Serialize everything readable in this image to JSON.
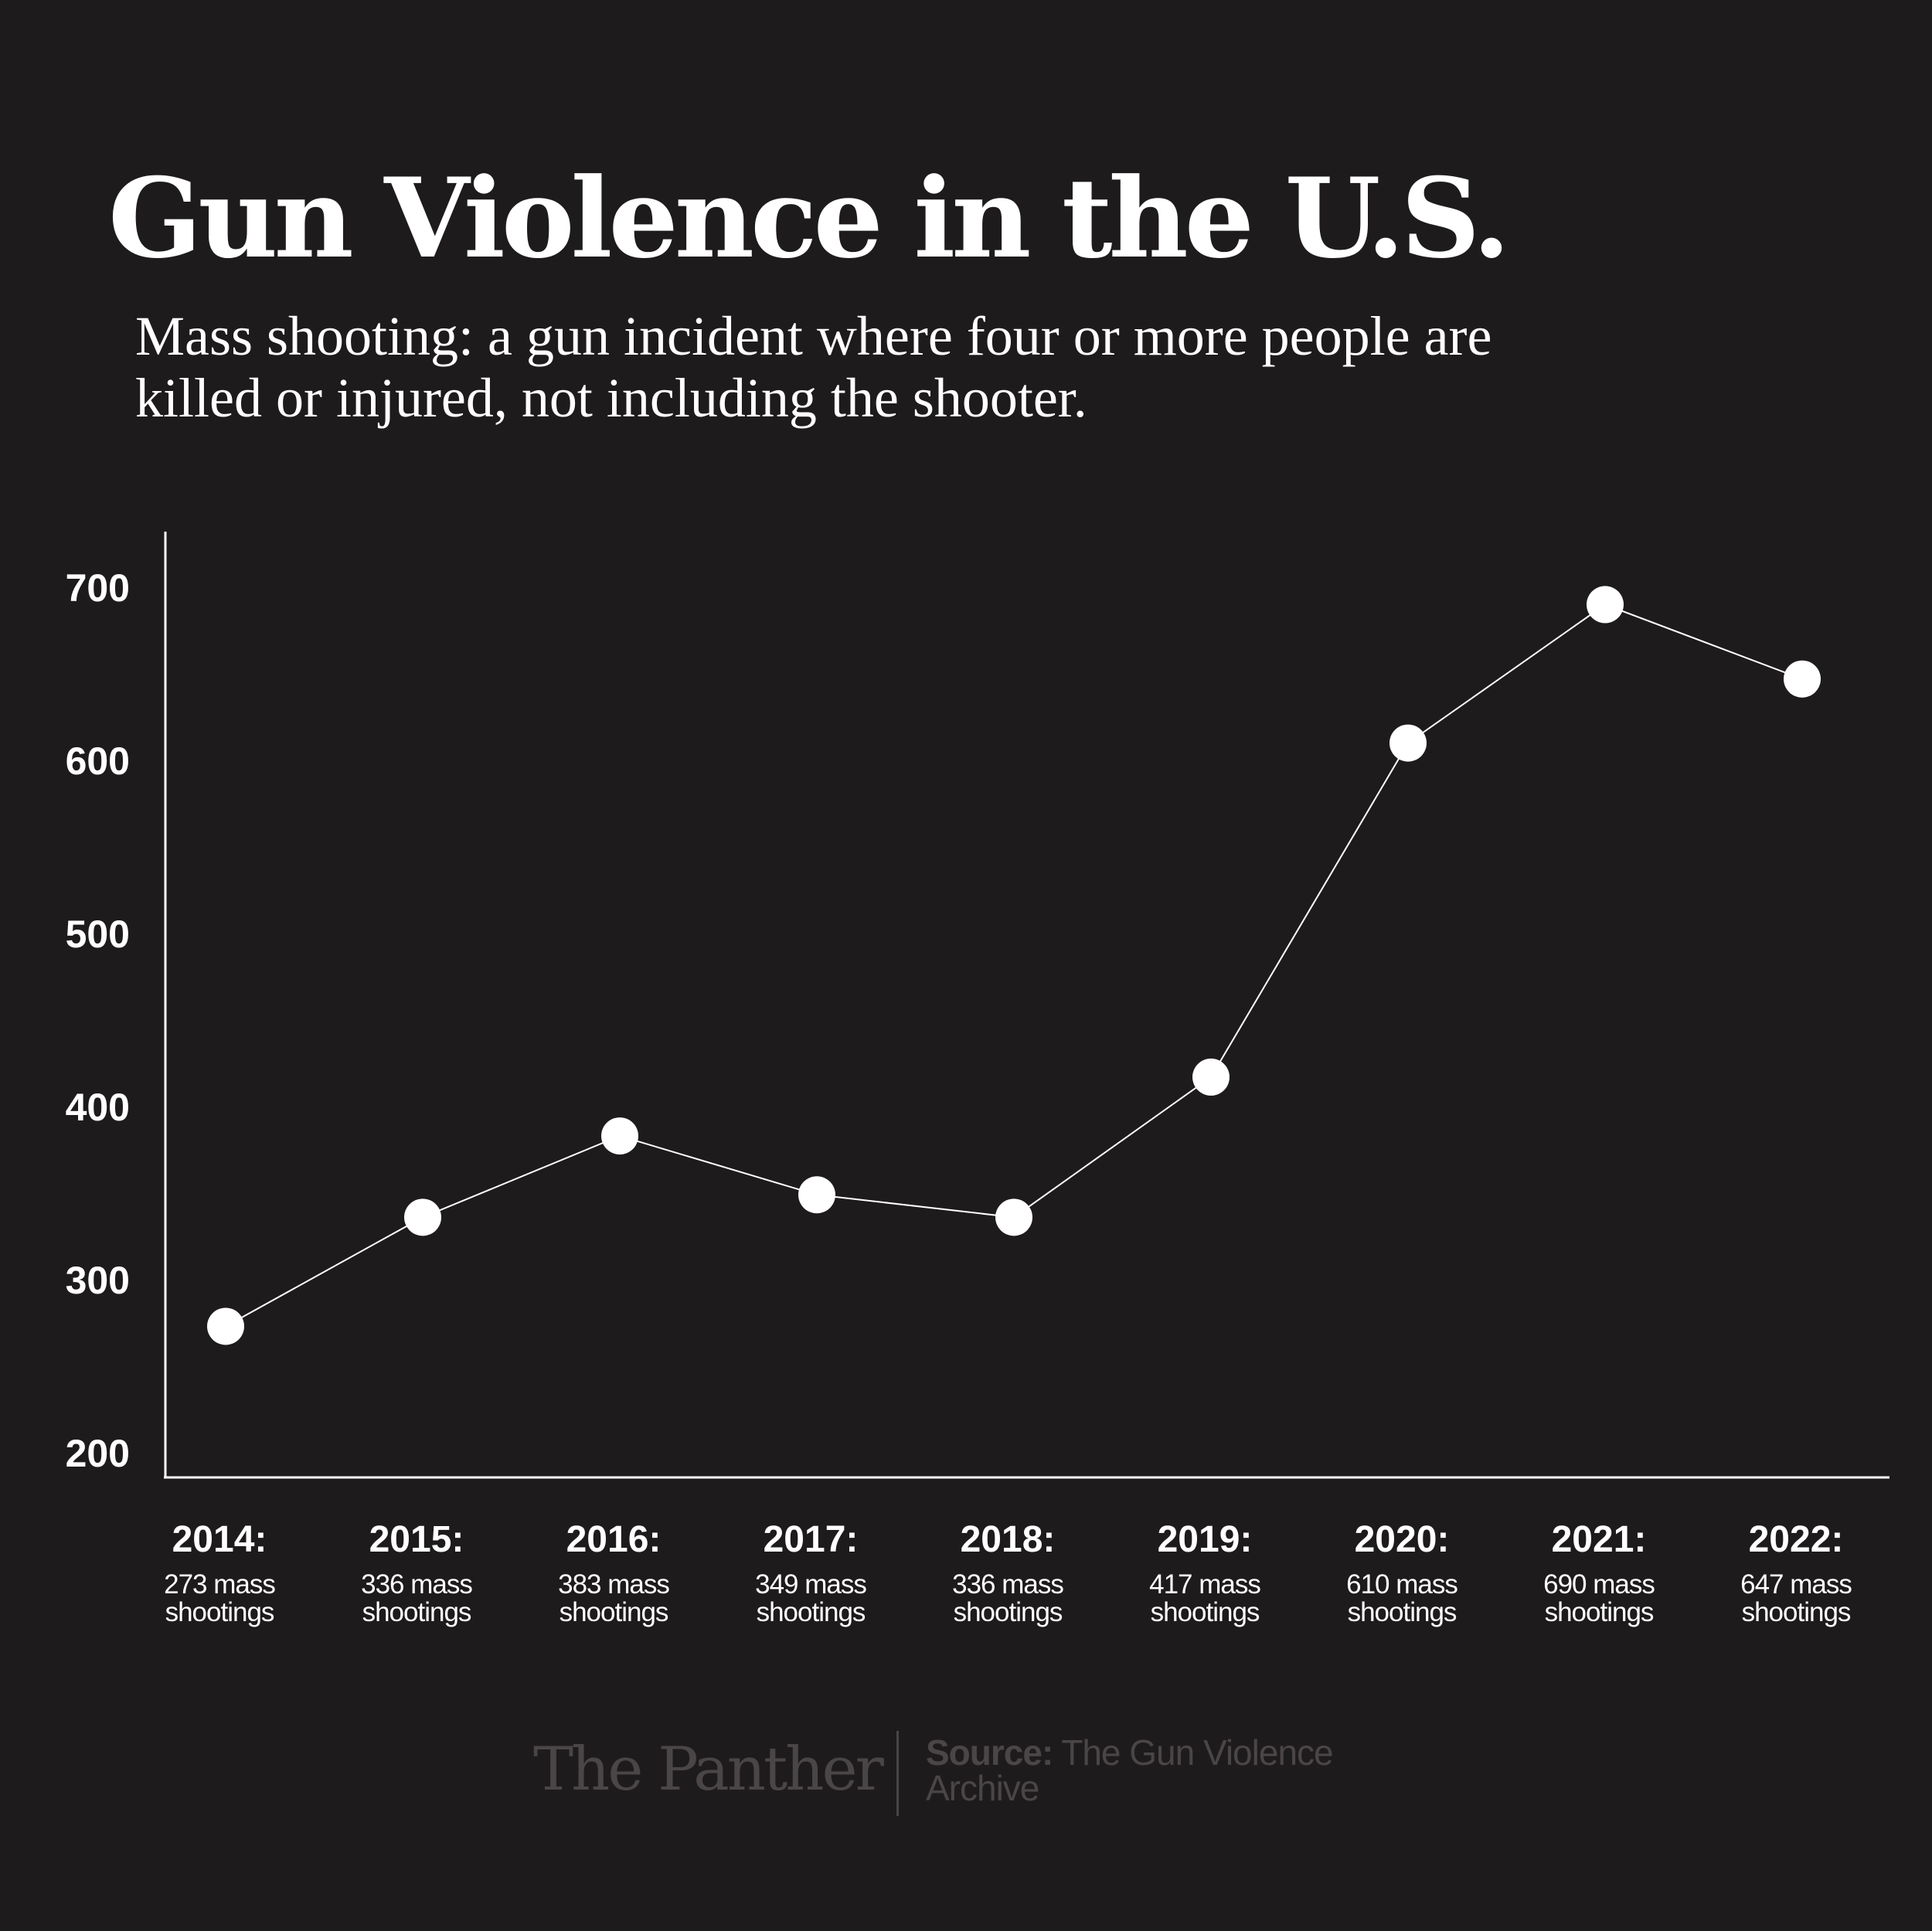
{
  "title": "Gun Violence in the U.S.",
  "subtitle": "Mass shooting: a gun incident where four or more people are killed or injured, not including the shooter.",
  "chart_data": {
    "type": "line",
    "title": "Gun Violence in the U.S.",
    "subtitle": "Mass shooting: a gun incident where four or more people are killed or injured, not including the shooter.",
    "xlabel": "",
    "ylabel": "",
    "ylim": [
      200,
      700
    ],
    "y_ticks": [
      "700",
      "600",
      "500",
      "400",
      "300",
      "200"
    ],
    "y_tick_values": [
      700,
      600,
      500,
      400,
      300,
      200
    ],
    "grid": false,
    "legend": "none",
    "categories": [
      "2014:",
      "2015:",
      "2016:",
      "2017:",
      "2018:",
      "2019:",
      "2020:",
      "2021:",
      "2022:"
    ],
    "category_notes": [
      "273 mass shootings",
      "336 mass shootings",
      "383 mass shootings",
      "349 mass shootings",
      "336 mass shootings",
      "417 mass shootings",
      "610 mass shootings",
      "690 mass shootings",
      "647 mass shootings"
    ],
    "values": [
      273,
      336,
      383,
      349,
      336,
      417,
      610,
      690,
      647
    ],
    "colors": {
      "background": "#1e1b1c",
      "line": "#ffffff",
      "point": "#ffffff"
    }
  },
  "footer": {
    "brand": "The Panther",
    "source_label": "Source:",
    "source_text": "The Gun Violence Archive"
  }
}
